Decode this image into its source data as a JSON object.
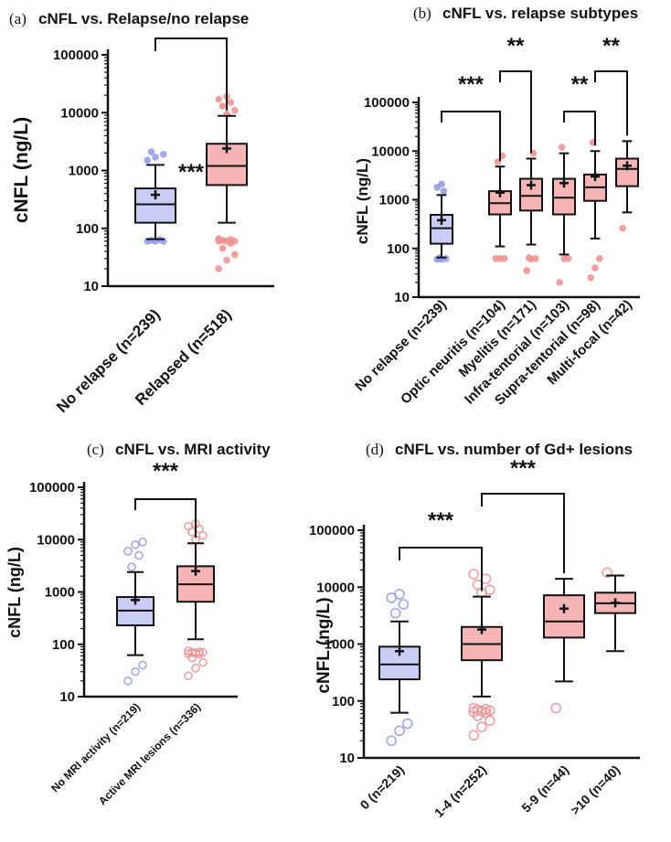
{
  "colors": {
    "blue_fill": "#c9cdf5",
    "blue_edge": "#8f97e8",
    "pink_fill": "#f6b5b5",
    "pink_edge": "#ef8f8f",
    "ink": "#111111"
  },
  "chart_data": [
    {
      "type": "box",
      "panel": "a",
      "letter": "(a)",
      "title": "cNFL vs. Relapse/no relapse",
      "ylabel": "cNFL (ng/L)",
      "yscale": "log",
      "ylim": [
        10,
        100000
      ],
      "yticks": [
        "10",
        "100",
        "1000",
        "10000",
        "100000"
      ],
      "categories": [
        "No relapse (n=239)",
        "Relapsed (n=518)"
      ],
      "boxes": [
        {
          "group": "blue",
          "min": 65,
          "q1": 125,
          "median": 260,
          "q3": 490,
          "max": 1250,
          "mean": 380,
          "outliers": [
            60,
            60,
            60,
            62,
            64,
            1500,
            1700,
            1900,
            2100
          ]
        },
        {
          "group": "pink",
          "min": 125,
          "q1": 560,
          "median": 1200,
          "q3": 2900,
          "max": 8800,
          "mean": 2400,
          "outliers": [
            20,
            28,
            35,
            45,
            55,
            60,
            60,
            60,
            62,
            64,
            66,
            9500,
            11000,
            13000,
            15000,
            17000,
            19000
          ]
        }
      ],
      "significance": [
        {
          "from": 0,
          "to": 1,
          "label": "***"
        }
      ]
    },
    {
      "type": "box",
      "panel": "b",
      "letter": "(b)",
      "title": "cNFL vs. relapse subtypes",
      "ylabel": "cNFL (ng/L)",
      "yscale": "log",
      "ylim": [
        10,
        100000
      ],
      "yticks": [
        "10",
        "100",
        "1000",
        "10000",
        "100000"
      ],
      "categories": [
        "No relapse (n=239)",
        "Optic neuritis (n=104)",
        "Myelitis (n=171)",
        "Infra-tentorial (n=103)",
        "Supra-tentorial (n=98)",
        "Multi-focal (n=42)"
      ],
      "boxes": [
        {
          "group": "blue",
          "min": 65,
          "q1": 125,
          "median": 260,
          "q3": 490,
          "max": 1250,
          "mean": 380,
          "outliers": [
            60,
            60,
            62,
            64,
            1500,
            1800,
            2100
          ]
        },
        {
          "group": "pink",
          "min": 110,
          "q1": 500,
          "median": 850,
          "q3": 1500,
          "max": 4800,
          "mean": 1400,
          "outliers": [
            62,
            62,
            62,
            6000,
            8000
          ]
        },
        {
          "group": "pink",
          "min": 120,
          "q1": 600,
          "median": 1200,
          "q3": 2700,
          "max": 7000,
          "mean": 2000,
          "outliers": [
            35,
            60,
            62,
            64,
            9000
          ]
        },
        {
          "group": "pink",
          "min": 75,
          "q1": 500,
          "median": 1100,
          "q3": 2700,
          "max": 9000,
          "mean": 2200,
          "outliers": [
            20,
            62,
            62,
            12000
          ]
        },
        {
          "group": "pink",
          "min": 160,
          "q1": 950,
          "median": 1800,
          "q3": 3300,
          "max": 10000,
          "mean": 3000,
          "outliers": [
            25,
            40,
            62,
            15000
          ]
        },
        {
          "group": "pink",
          "min": 550,
          "q1": 1900,
          "median": 4300,
          "q3": 7000,
          "max": 16000,
          "mean": 5000,
          "outliers": [
            260
          ]
        }
      ],
      "significance": [
        {
          "from": 0,
          "to": 1,
          "label": "***"
        },
        {
          "from": 1,
          "to": 2,
          "label": "**"
        },
        {
          "from": 3,
          "to": 4,
          "label": "**"
        },
        {
          "from": 4,
          "to": 5,
          "label": "**"
        }
      ]
    },
    {
      "type": "box",
      "panel": "c",
      "letter": "(c)",
      "title": "cNFL vs. MRI activity",
      "ylabel": "cNFL (ng/L)",
      "yscale": "log",
      "ylim": [
        10,
        100000
      ],
      "yticks": [
        "10",
        "100",
        "1000",
        "10000",
        "100000"
      ],
      "categories": [
        "No MRI activity (n=219)",
        "Active MRI lesions (n=336)"
      ],
      "boxes": [
        {
          "group": "blue",
          "min": 62,
          "q1": 230,
          "median": 440,
          "q3": 800,
          "max": 2400,
          "mean": 700,
          "outliers": [
            20,
            30,
            40,
            3000,
            5000,
            6000,
            8000,
            9000
          ]
        },
        {
          "group": "pink",
          "min": 125,
          "q1": 650,
          "median": 1400,
          "q3": 3100,
          "max": 8500,
          "mean": 2500,
          "outliers": [
            25,
            35,
            45,
            55,
            65,
            66,
            68,
            70,
            70,
            72,
            75,
            10000,
            12000,
            14000,
            16000,
            18000,
            20000
          ]
        }
      ],
      "significance": [
        {
          "from": 0,
          "to": 1,
          "label": "***"
        }
      ]
    },
    {
      "type": "box",
      "panel": "d",
      "letter": "(d)",
      "title": "cNFL vs. number of Gd+ lesions",
      "ylabel": "cNFL (ng/L)",
      "yscale": "log",
      "ylim": [
        10,
        100000
      ],
      "yticks": [
        "10",
        "100",
        "1000",
        "10000",
        "100000"
      ],
      "categories": [
        "0 (n=219)",
        "1-4 (n=252)",
        "5-9 (n=44)",
        ">10 (n=40)"
      ],
      "boxes": [
        {
          "group": "blue",
          "min": 62,
          "q1": 240,
          "median": 440,
          "q3": 900,
          "max": 2500,
          "mean": 750,
          "outliers": [
            20,
            30,
            40,
            3500,
            5000,
            6500,
            7500
          ]
        },
        {
          "group": "pink",
          "min": 120,
          "q1": 520,
          "median": 1000,
          "q3": 2000,
          "max": 6800,
          "mean": 1800,
          "outliers": [
            25,
            35,
            45,
            55,
            62,
            64,
            66,
            68,
            70,
            72,
            75,
            8000,
            9000,
            11000,
            14000,
            17000
          ]
        },
        {
          "group": "pink",
          "min": 220,
          "q1": 1300,
          "median": 2500,
          "q3": 7200,
          "max": 14000,
          "mean": 4200,
          "outliers": [
            75
          ]
        },
        {
          "group": "pink",
          "min": 750,
          "q1": 3500,
          "median": 5200,
          "q3": 8000,
          "max": 16000,
          "mean": 5300,
          "outliers": [
            18000
          ]
        }
      ],
      "significance": [
        {
          "from": 0,
          "to": 1,
          "label": "***"
        },
        {
          "from": 1,
          "to": 2,
          "label": "***"
        }
      ]
    }
  ]
}
